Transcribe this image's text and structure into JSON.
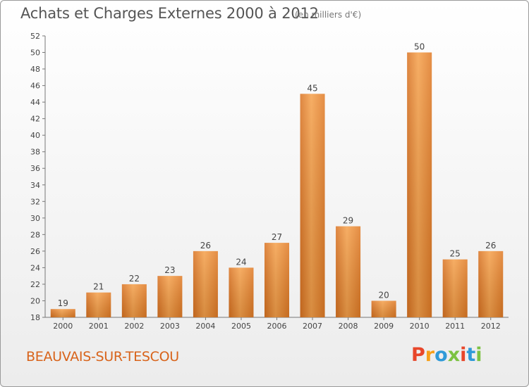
{
  "header": {
    "title": "Achats et Charges Externes 2000 à 2012",
    "unit": "(en milliers d'€)"
  },
  "footer": {
    "town": "BEAUVAIS-SUR-TESCOU",
    "brand": "Proxiti",
    "brand_colors": [
      "#e8462a",
      "#f6a01a",
      "#2f9ad8",
      "#7cc242",
      "#e8462a",
      "#2f9ad8",
      "#7cc242"
    ]
  },
  "chart_data": {
    "type": "bar",
    "title": "Achats et Charges Externes 2000 à 2012",
    "subtitle": "(en milliers d'€)",
    "xlabel": "",
    "ylabel": "",
    "categories": [
      "2000",
      "2001",
      "2002",
      "2003",
      "2004",
      "2005",
      "2006",
      "2007",
      "2008",
      "2009",
      "2010",
      "2011",
      "2012"
    ],
    "values": [
      19,
      21,
      22,
      23,
      26,
      24,
      27,
      45,
      29,
      20,
      50,
      25,
      26
    ],
    "ylim": [
      18,
      52
    ],
    "yticks": [
      18,
      20,
      22,
      24,
      26,
      28,
      30,
      32,
      34,
      36,
      38,
      40,
      42,
      44,
      46,
      48,
      50,
      52
    ],
    "grid": false,
    "legend": "none",
    "bar_color": "#f0912f"
  }
}
